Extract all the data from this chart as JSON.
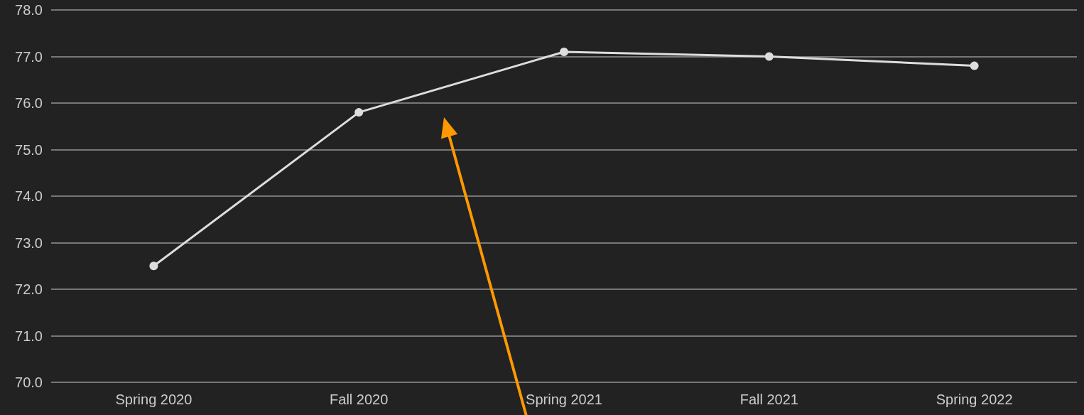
{
  "chart_data": {
    "type": "line",
    "categories": [
      "Spring 2020",
      "Fall 2020",
      "Spring 2021",
      "Fall 2021",
      "Spring 2022"
    ],
    "series": [
      {
        "color": "#dddddd",
        "values": [
          72.5,
          75.8,
          77.1,
          77.0,
          76.8
        ]
      }
    ],
    "ylim": [
      70,
      78
    ],
    "yticks": [
      {
        "value": 70,
        "label": "70.0"
      },
      {
        "value": 71,
        "label": "71.0"
      },
      {
        "value": 72,
        "label": "72.0"
      },
      {
        "value": 73,
        "label": "73.0"
      },
      {
        "value": 74,
        "label": "74.0"
      },
      {
        "value": 75,
        "label": "75.0"
      },
      {
        "value": 76,
        "label": "76.0"
      },
      {
        "value": 77,
        "label": "77.0"
      },
      {
        "value": 78,
        "label": "78.0"
      }
    ],
    "grid": "y",
    "marker": "circle",
    "line_style": "solid"
  }
}
